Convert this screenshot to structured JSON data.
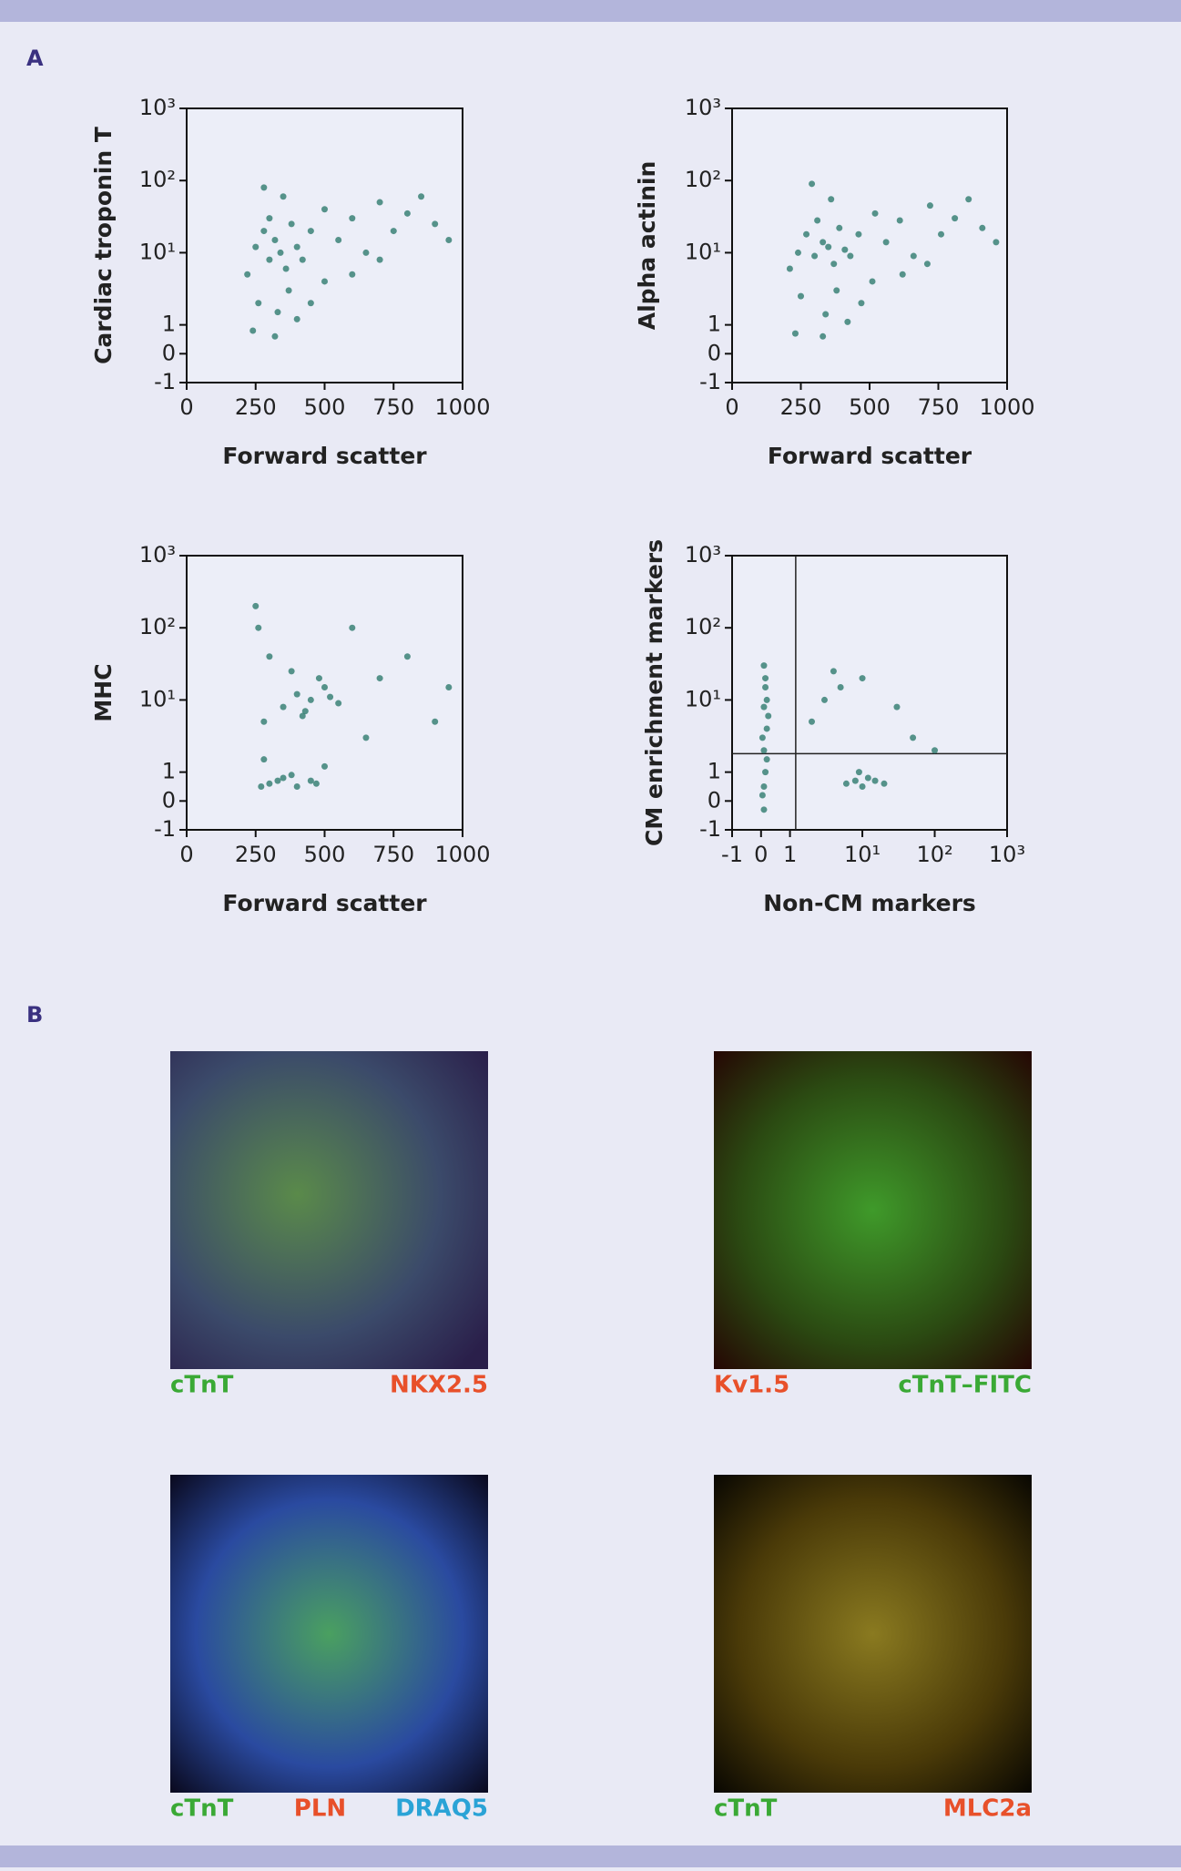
{
  "panel_labels": [
    "A",
    "B"
  ],
  "chart_data": [
    {
      "type": "scatter",
      "x_label": "Forward scatter",
      "y_label": "Cardiac troponin T",
      "color": "#2f7a6e",
      "xscale": "linear",
      "yscale": "symlog",
      "xlim": [
        0,
        1000
      ],
      "ylim": [
        -1,
        1000
      ],
      "xticks": [
        0,
        250,
        500,
        750,
        1000
      ],
      "yticks": [
        -1,
        0,
        1,
        {
          "value": 10,
          "label": "10¹"
        },
        {
          "value": 100,
          "label": "10²"
        },
        {
          "value": 1000,
          "label": "10³"
        }
      ],
      "x": [
        220,
        250,
        280,
        300,
        320,
        340,
        360,
        380,
        400,
        420,
        300,
        260,
        330,
        370,
        450,
        500,
        550,
        600,
        650,
        700,
        750,
        800,
        850,
        900,
        950,
        240,
        400,
        500,
        350,
        280,
        600,
        700,
        320,
        450
      ],
      "y": [
        5,
        12,
        20,
        8,
        15,
        10,
        6,
        25,
        12,
        8,
        30,
        2,
        1.5,
        3,
        20,
        40,
        15,
        30,
        10,
        50,
        20,
        35,
        60,
        25,
        15,
        0.8,
        1.2,
        4,
        60,
        80,
        5,
        8,
        0.6,
        2
      ]
    },
    {
      "type": "scatter",
      "x_label": "Forward scatter",
      "y_label": "Alpha actinin",
      "color": "#2f7a6e",
      "xscale": "linear",
      "yscale": "symlog",
      "xlim": [
        0,
        1000
      ],
      "ylim": [
        -1,
        1000
      ],
      "xticks": [
        0,
        250,
        500,
        750,
        1000
      ],
      "yticks": [
        -1,
        0,
        1,
        {
          "value": 10,
          "label": "10¹"
        },
        {
          "value": 100,
          "label": "10²"
        },
        {
          "value": 1000,
          "label": "10³"
        }
      ],
      "x": [
        210,
        240,
        270,
        300,
        330,
        350,
        370,
        390,
        410,
        430,
        310,
        250,
        340,
        380,
        460,
        520,
        560,
        610,
        660,
        720,
        760,
        810,
        860,
        910,
        960,
        230,
        420,
        510,
        360,
        290,
        620,
        710,
        330,
        470
      ],
      "y": [
        6,
        10,
        18,
        9,
        14,
        12,
        7,
        22,
        11,
        9,
        28,
        2.5,
        1.4,
        3,
        18,
        35,
        14,
        28,
        9,
        45,
        18,
        30,
        55,
        22,
        14,
        0.7,
        1.1,
        4,
        55,
        90,
        5,
        7,
        0.6,
        2
      ]
    },
    {
      "type": "scatter",
      "x_label": "Forward scatter",
      "y_label": "MHC",
      "color": "#2f7a6e",
      "xscale": "linear",
      "yscale": "symlog",
      "xlim": [
        0,
        1000
      ],
      "ylim": [
        -1,
        1000
      ],
      "xticks": [
        0,
        250,
        500,
        750,
        1000
      ],
      "yticks": [
        -1,
        0,
        1,
        {
          "value": 10,
          "label": "10¹"
        },
        {
          "value": 100,
          "label": "10²"
        },
        {
          "value": 1000,
          "label": "10³"
        }
      ],
      "x": [
        350,
        400,
        450,
        500,
        420,
        480,
        380,
        550,
        300,
        260,
        280,
        300,
        350,
        400,
        450,
        380,
        500,
        280,
        700,
        800,
        900,
        650,
        950,
        600,
        270,
        330,
        430,
        520,
        470,
        250
      ],
      "y": [
        8,
        12,
        10,
        15,
        6,
        20,
        25,
        9,
        40,
        100,
        5,
        0.6,
        0.8,
        0.5,
        0.7,
        0.9,
        1.2,
        1.5,
        20,
        40,
        5,
        3,
        15,
        100,
        0.5,
        0.7,
        7,
        11,
        0.6,
        200
      ]
    },
    {
      "type": "scatter",
      "x_label": "Non-CM markers",
      "y_label": "CM enrichment markers",
      "color": "#2f7a6e",
      "xscale": "symlog",
      "yscale": "symlog",
      "xlim": [
        -1,
        1000
      ],
      "ylim": [
        -1,
        1000
      ],
      "xticks": [
        -1,
        0,
        1,
        {
          "value": 10,
          "label": "10¹"
        },
        {
          "value": 100,
          "label": "10²"
        },
        {
          "value": 1000,
          "label": "10³"
        }
      ],
      "yticks": [
        -1,
        0,
        1,
        {
          "value": 10,
          "label": "10¹"
        },
        {
          "value": 100,
          "label": "10²"
        },
        {
          "value": 1000,
          "label": "10³"
        }
      ],
      "gates": {
        "x": 1.2,
        "y": 1.8
      },
      "x": [
        0.1,
        0.15,
        0.1,
        0.2,
        0.1,
        0.15,
        0.05,
        0.2,
        0.1,
        0.25,
        0.1,
        0.2,
        0.05,
        0.15,
        8,
        10,
        12,
        6,
        15,
        9,
        20,
        3,
        5,
        10,
        2,
        30,
        50,
        4,
        100
      ],
      "y": [
        0.5,
        1,
        2,
        4,
        8,
        15,
        3,
        1.5,
        -0.3,
        6,
        30,
        10,
        0.2,
        20,
        0.7,
        0.5,
        0.8,
        0.6,
        0.7,
        1,
        0.6,
        10,
        15,
        20,
        5,
        8,
        3,
        25,
        2
      ]
    }
  ],
  "images": [
    {
      "captions": [
        {
          "text": "cTnT",
          "color": "#3aa935"
        },
        {
          "text": "NKX2.5",
          "color": "#e8502a"
        }
      ]
    },
    {
      "captions": [
        {
          "text": "Kv1.5",
          "color": "#e8502a"
        },
        {
          "text": "cTnT–FITC",
          "color": "#3aa935"
        }
      ]
    },
    {
      "captions": [
        {
          "text": "cTnT",
          "color": "#3aa935"
        },
        {
          "text": "PLN",
          "color": "#e8502a"
        },
        {
          "text": "DRAQ5",
          "color": "#2aa3d6"
        }
      ]
    },
    {
      "captions": [
        {
          "text": "cTnT",
          "color": "#3aa935"
        },
        {
          "text": "MLC2a",
          "color": "#e8502a"
        }
      ]
    }
  ]
}
